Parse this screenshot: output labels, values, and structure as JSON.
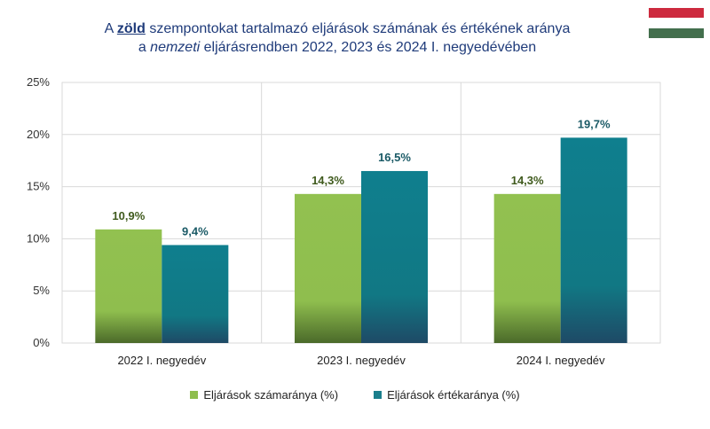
{
  "title": {
    "line1_pre": "A ",
    "line1_bold": "zöld",
    "line1_post": " szempontokat tartalmazó eljárások számának és értékének aránya",
    "line2_pre": "a ",
    "line2_italic": "nemzeti",
    "line2_post": " eljárásrendben 2022, 2023 és 2024 I. negyedévében"
  },
  "flag_colors": [
    "#cd2a3e",
    "#ffffff",
    "#436f4d"
  ],
  "colors": {
    "series1": "#8fbe4e",
    "series2": "#1a7e8c",
    "label1": "#3f5a1d",
    "label2": "#1a5a66"
  },
  "chart_data": {
    "type": "bar",
    "categories": [
      "2022  I. negyedév",
      "2023  I. negyedév",
      "2024  I. negyedév"
    ],
    "series": [
      {
        "name": "Eljárások számaránya (%)",
        "values": [
          10.9,
          14.3,
          14.3
        ],
        "labels": [
          "10,9%",
          "14,3%",
          "14,3%"
        ]
      },
      {
        "name": "Eljárások értékaránya (%)",
        "values": [
          9.4,
          16.5,
          19.7
        ],
        "labels": [
          "9,4%",
          "16,5%",
          "19,7%"
        ]
      }
    ],
    "ylim": [
      0,
      25
    ],
    "yticks": [
      0,
      5,
      10,
      15,
      20,
      25
    ],
    "ytick_labels": [
      "0%",
      "5%",
      "10%",
      "15%",
      "20%",
      "25%"
    ],
    "grid": true,
    "legend": "bottom"
  }
}
